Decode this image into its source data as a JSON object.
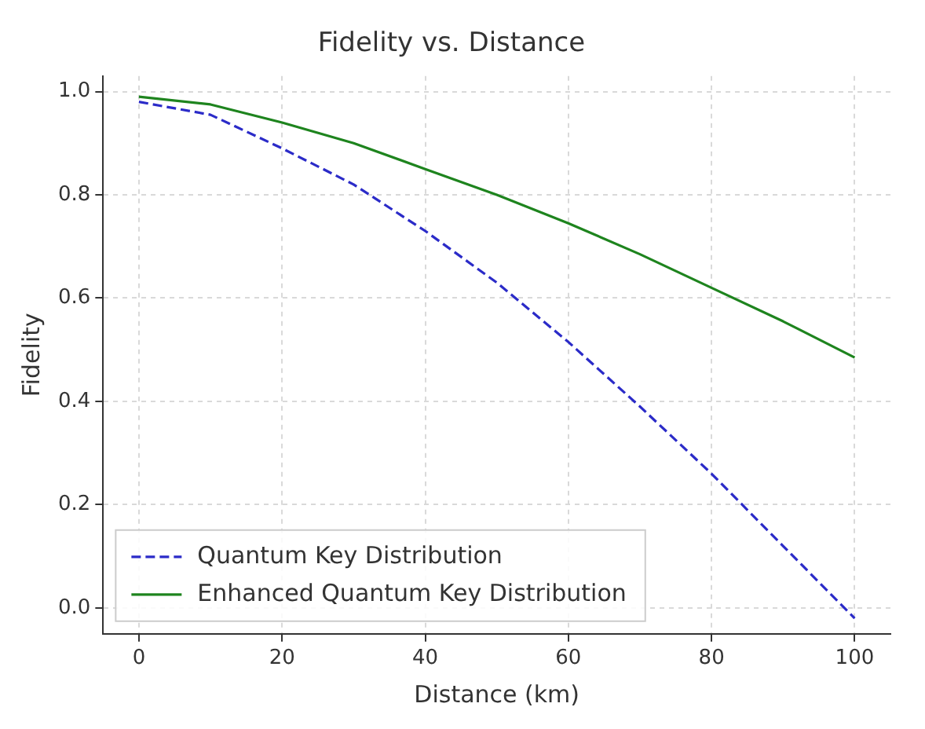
{
  "chart_data": {
    "type": "line",
    "title": "Fidelity vs. Distance",
    "xlabel": "Distance (km)",
    "ylabel": "Fidelity",
    "x": [
      0,
      10,
      20,
      30,
      40,
      50,
      60,
      70,
      80,
      90,
      100
    ],
    "series": [
      {
        "name": "Quantum Key Distribution",
        "color": "#2b2bc8",
        "line_style": "dashed",
        "values": [
          0.98,
          0.955,
          0.89,
          0.82,
          0.73,
          0.63,
          0.515,
          0.39,
          0.26,
          0.12,
          -0.02
        ]
      },
      {
        "name": "Enhanced Quantum Key Distribution",
        "color": "#1e841e",
        "line_style": "solid",
        "values": [
          0.99,
          0.975,
          0.94,
          0.9,
          0.85,
          0.8,
          0.745,
          0.685,
          0.62,
          0.555,
          0.485
        ]
      }
    ],
    "xlim": [
      -5,
      105
    ],
    "xticks": [
      0,
      20,
      40,
      60,
      80,
      100
    ],
    "ylim": [
      -0.05,
      1.03
    ],
    "yticks": [
      {
        "value": 0,
        "label": "0.0"
      },
      0.2,
      0.4,
      0.6,
      0.8,
      {
        "value": 1,
        "label": "1.0"
      }
    ],
    "grid": true,
    "legend": "bottom left",
    "marker": "none"
  }
}
